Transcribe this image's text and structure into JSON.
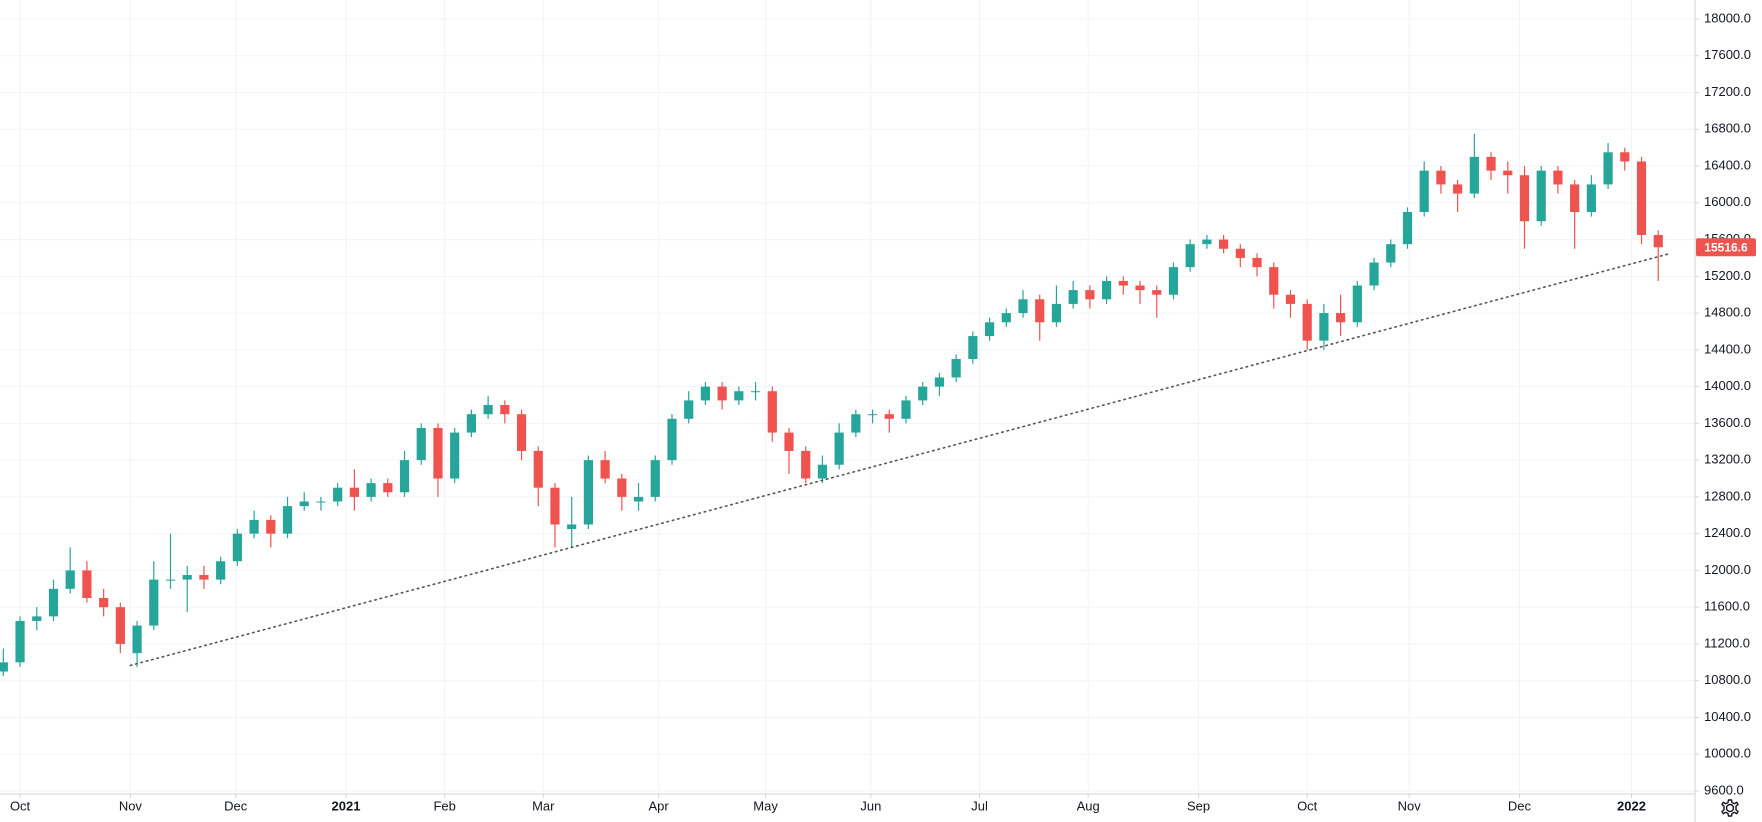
{
  "chart_data": {
    "type": "candlestick",
    "open": [
      10900,
      11000,
      11450,
      11500,
      11800,
      12000,
      11700,
      11600,
      11100,
      11400,
      11900,
      11900,
      11950,
      11900,
      12100,
      12400,
      12550,
      12400,
      12700,
      12750,
      12750,
      12900,
      12800,
      12950,
      12850,
      13200,
      13550,
      13000,
      13500,
      13700,
      13800,
      13700,
      13300,
      12900,
      12450,
      12500,
      13200,
      13000,
      12750,
      12800,
      13200,
      13650,
      13850,
      14000,
      13850,
      13950,
      13950,
      13500,
      13300,
      13000,
      13150,
      13500,
      13700,
      13700,
      13650,
      13850,
      14000,
      14100,
      14300,
      14550,
      14700,
      14800,
      14950,
      14700,
      14900,
      15050,
      14950,
      15150,
      15100,
      15050,
      15000,
      15300,
      15550,
      15600,
      15500,
      15400,
      15300,
      15000,
      14900,
      14500,
      14800,
      14700,
      15100,
      15350,
      15550,
      15900,
      16350,
      16200,
      16100,
      16500,
      16350,
      16300,
      15800,
      16350,
      16200,
      15900,
      16200,
      16550,
      16450,
      15650
    ],
    "high": [
      11150,
      11500,
      11600,
      11900,
      12250,
      12100,
      11800,
      11650,
      11450,
      12100,
      12400,
      12050,
      12050,
      12150,
      12450,
      12650,
      12600,
      12800,
      12850,
      12800,
      12950,
      13100,
      13000,
      13000,
      13300,
      13600,
      13600,
      13550,
      13750,
      13900,
      13850,
      13750,
      13350,
      12950,
      12800,
      13250,
      13300,
      13050,
      12950,
      13250,
      13700,
      13950,
      14050,
      14050,
      14000,
      14050,
      14000,
      13550,
      13350,
      13250,
      13600,
      13750,
      13750,
      13750,
      13900,
      14050,
      14150,
      14350,
      14600,
      14750,
      14850,
      15050,
      15000,
      15100,
      15150,
      15100,
      15200,
      15200,
      15150,
      15100,
      15350,
      15600,
      15650,
      15650,
      15550,
      15450,
      15350,
      15050,
      14950,
      14900,
      15000,
      15150,
      15400,
      15600,
      15950,
      16450,
      16400,
      16250,
      16750,
      16550,
      16450,
      16400,
      16400,
      16400,
      16250,
      16300,
      16650,
      16600,
      16500,
      15700
    ],
    "low": [
      10850,
      10950,
      11350,
      11450,
      11750,
      11650,
      11500,
      11100,
      10950,
      11350,
      11800,
      11550,
      11800,
      11850,
      12050,
      12350,
      12250,
      12350,
      12650,
      12650,
      12700,
      12650,
      12750,
      12800,
      12800,
      13150,
      12800,
      12950,
      13450,
      13650,
      13600,
      13200,
      12700,
      12250,
      12250,
      12450,
      12950,
      12650,
      12650,
      12750,
      13150,
      13600,
      13800,
      13750,
      13800,
      13850,
      13400,
      13050,
      12950,
      12950,
      13100,
      13450,
      13600,
      13500,
      13600,
      13800,
      13900,
      14050,
      14250,
      14500,
      14650,
      14750,
      14500,
      14650,
      14850,
      14850,
      14900,
      15000,
      14900,
      14750,
      14950,
      15250,
      15500,
      15450,
      15300,
      15200,
      14850,
      14750,
      14400,
      14400,
      14550,
      14650,
      15050,
      15300,
      15500,
      15850,
      16100,
      15900,
      16050,
      16250,
      16100,
      15500,
      15750,
      16100,
      15500,
      15850,
      16150,
      16350,
      15550,
      15150
    ],
    "close": [
      11000,
      11450,
      11500,
      11800,
      12000,
      11700,
      11600,
      11200,
      11400,
      11900,
      11900,
      11950,
      11900,
      12100,
      12400,
      12550,
      12400,
      12700,
      12750,
      12750,
      12900,
      12800,
      12950,
      12850,
      13200,
      13550,
      13000,
      13500,
      13700,
      13800,
      13700,
      13300,
      12900,
      12500,
      12500,
      13200,
      13000,
      12800,
      12800,
      13200,
      13650,
      13850,
      14000,
      13850,
      13950,
      13950,
      13500,
      13300,
      13000,
      13150,
      13500,
      13700,
      13700,
      13650,
      13850,
      14000,
      14100,
      14300,
      14550,
      14700,
      14800,
      14950,
      14700,
      14900,
      15050,
      14950,
      15150,
      15100,
      15050,
      15000,
      15300,
      15550,
      15600,
      15500,
      15400,
      15300,
      15000,
      14900,
      14500,
      14800,
      14700,
      15100,
      15350,
      15550,
      15900,
      16350,
      16200,
      16100,
      16500,
      16350,
      16300,
      15800,
      16350,
      16200,
      15900,
      16200,
      16550,
      16450,
      15650,
      15516.6
    ],
    "up_color": "#26a69a",
    "down_color": "#ef5350",
    "xlim": [
      -0.2,
      101.2
    ],
    "xticks": [
      {
        "value": 1.0,
        "label": "Oct"
      },
      {
        "value": 7.6,
        "label": "Nov"
      },
      {
        "value": 13.9,
        "label": "Dec"
      },
      {
        "value": 20.5,
        "label": "2021"
      },
      {
        "value": 26.4,
        "label": "Feb"
      },
      {
        "value": 32.3,
        "label": "Mar"
      },
      {
        "value": 39.2,
        "label": "Apr"
      },
      {
        "value": 45.6,
        "label": "May"
      },
      {
        "value": 51.9,
        "label": "Jun"
      },
      {
        "value": 58.4,
        "label": "Jul"
      },
      {
        "value": 64.9,
        "label": "Aug"
      },
      {
        "value": 71.5,
        "label": "Sep"
      },
      {
        "value": 78.0,
        "label": "Oct"
      },
      {
        "value": 84.1,
        "label": "Nov"
      },
      {
        "value": 90.7,
        "label": "Dec"
      },
      {
        "value": 97.4,
        "label": "2022"
      }
    ],
    "ylim": [
      9600,
      18000
    ],
    "yticks": [
      {
        "value": 9600,
        "label": "9600.0"
      },
      {
        "value": 10000,
        "label": "10000.0"
      },
      {
        "value": 10400,
        "label": "10400.0"
      },
      {
        "value": 10800,
        "label": "10800.0"
      },
      {
        "value": 11200,
        "label": "11200.0"
      },
      {
        "value": 11600,
        "label": "11600.0"
      },
      {
        "value": 12000,
        "label": "12000.0"
      },
      {
        "value": 12400,
        "label": "12400.0"
      },
      {
        "value": 12800,
        "label": "12800.0"
      },
      {
        "value": 13200,
        "label": "13200.0"
      },
      {
        "value": 13600,
        "label": "13600.0"
      },
      {
        "value": 14000,
        "label": "14000.0"
      },
      {
        "value": 14400,
        "label": "14400.0"
      },
      {
        "value": 14800,
        "label": "14800.0"
      },
      {
        "value": 15200,
        "label": "15200.0"
      },
      {
        "value": 15600,
        "label": "15600.0"
      },
      {
        "value": 16000,
        "label": "16000.0"
      },
      {
        "value": 16400,
        "label": "16400.0"
      },
      {
        "value": 16800,
        "label": "16800.0"
      },
      {
        "value": 17200,
        "label": "17200.0"
      },
      {
        "value": 17600,
        "label": "17600.0"
      },
      {
        "value": 18000,
        "label": "18000.0"
      }
    ],
    "grid": true,
    "trendline": {
      "x": [
        7.6,
        99.6
      ],
      "y": [
        10966,
        15443
      ],
      "color": "#555555"
    },
    "last_price_color": "#ef5350"
  }
}
